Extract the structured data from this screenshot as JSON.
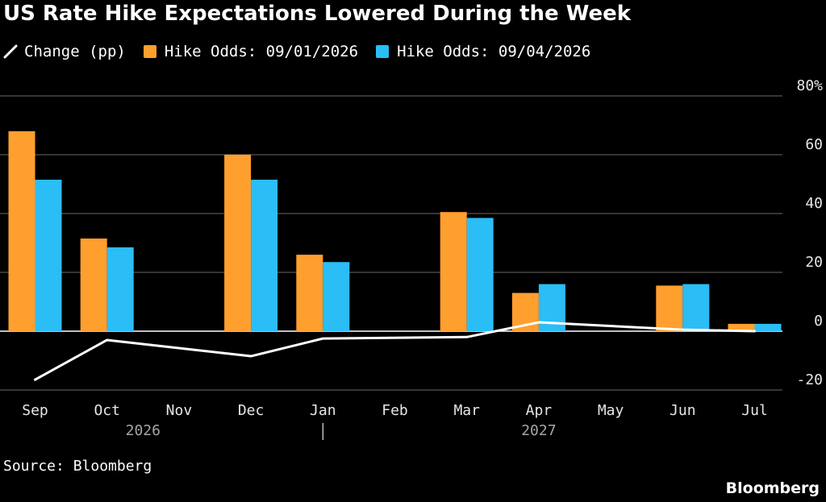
{
  "title": "US Rate Hike Expectations Lowered During the Week",
  "legend": [
    {
      "label": "Change (pp)",
      "type": "line",
      "color": "#ffffff"
    },
    {
      "label": "Hike Odds: 09/01/2026",
      "type": "bar",
      "color": "#ff9f2e"
    },
    {
      "label": "Hike Odds: 09/04/2026",
      "type": "bar",
      "color": "#2bbdf5"
    }
  ],
  "source": "Source: Bloomberg",
  "brand": "Bloomberg",
  "chart_data": {
    "type": "bar",
    "categories": [
      "Sep",
      "Oct",
      "Nov",
      "Dec",
      "Jan",
      "Feb",
      "Mar",
      "Apr",
      "May",
      "Jun",
      "Jul"
    ],
    "year_labels": [
      {
        "label": "2026",
        "between": [
          "Sep",
          "Dec"
        ]
      },
      {
        "label": "2027",
        "between": [
          "Jan",
          "Jul"
        ]
      }
    ],
    "series": [
      {
        "name": "Hike Odds: 09/01/2026",
        "type": "bar",
        "color": "#ff9f2e",
        "values": [
          68,
          31.5,
          null,
          60,
          26,
          null,
          40.5,
          13,
          null,
          15.5,
          2.5
        ]
      },
      {
        "name": "Hike Odds: 09/04/2026",
        "type": "bar",
        "color": "#2bbdf5",
        "values": [
          51.5,
          28.5,
          null,
          51.5,
          23.5,
          null,
          38.5,
          16,
          null,
          16,
          2.5
        ]
      },
      {
        "name": "Change (pp)",
        "type": "line",
        "color": "#ffffff",
        "values": [
          -16.5,
          -3,
          null,
          -8.5,
          -2.5,
          null,
          -2,
          3,
          null,
          0.5,
          0
        ]
      }
    ],
    "ylim": [
      -20,
      80
    ],
    "yticks": [
      -20,
      0,
      20,
      40,
      60,
      80
    ],
    "ytick_labels": [
      "-20",
      "0",
      "20",
      "40",
      "60",
      "80%"
    ],
    "grid": true
  }
}
